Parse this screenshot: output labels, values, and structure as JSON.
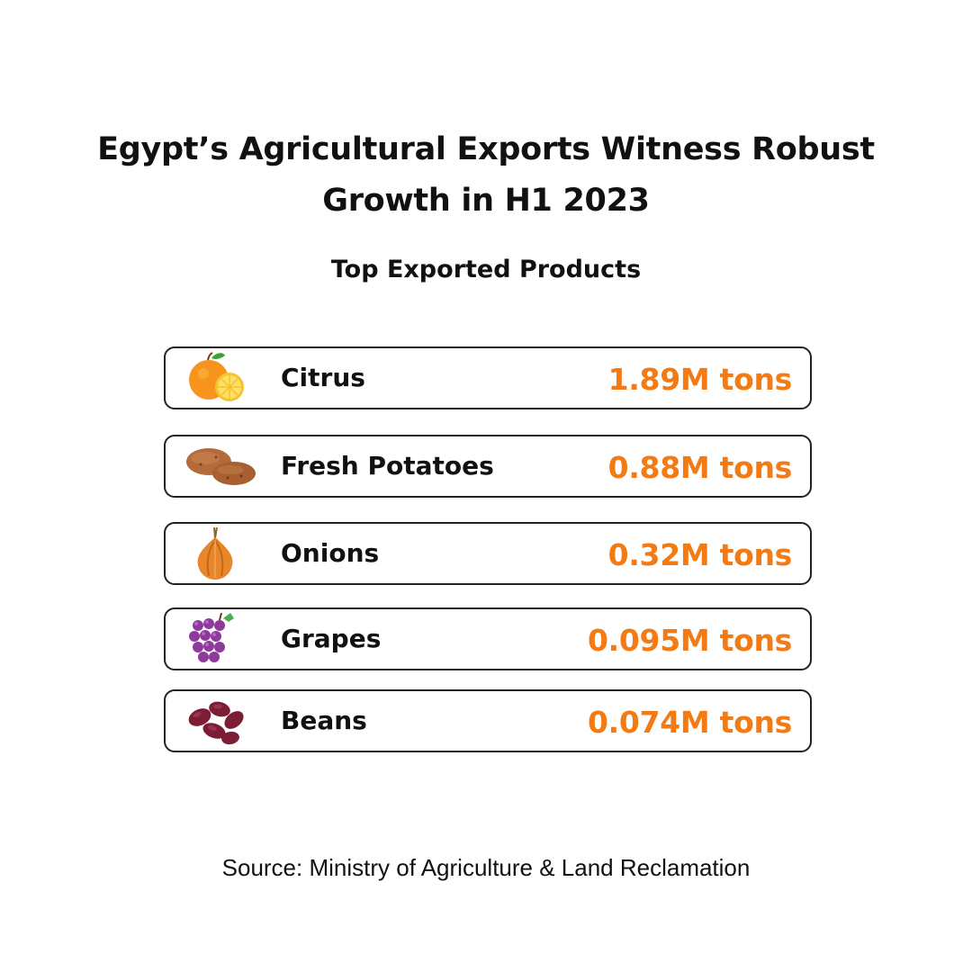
{
  "title_line1": "Egypt’s Agricultural Exports Witness Robust",
  "title_line2": "Growth in H1 2023",
  "subtitle": "Top Exported Products",
  "source": "Source: Ministry of Agriculture & Land Reclamation",
  "colors": {
    "value": "#f47a13",
    "border": "#222222"
  },
  "chart_data": {
    "type": "table",
    "title": "Egypt’s Agricultural Exports Witness Robust Growth in H1 2023",
    "subtitle": "Top Exported Products",
    "categories": [
      "Citrus",
      "Fresh Potatoes",
      "Onions",
      "Grapes",
      "Beans"
    ],
    "values": [
      1.89,
      0.88,
      0.32,
      0.095,
      0.074
    ],
    "value_labels": [
      "1.89M tons",
      "0.88M tons",
      "0.32M tons",
      "0.095M tons",
      "0.074M tons"
    ],
    "icons": [
      "orange-icon",
      "potato-icon",
      "onion-icon",
      "grapes-icon",
      "beans-icon"
    ]
  }
}
